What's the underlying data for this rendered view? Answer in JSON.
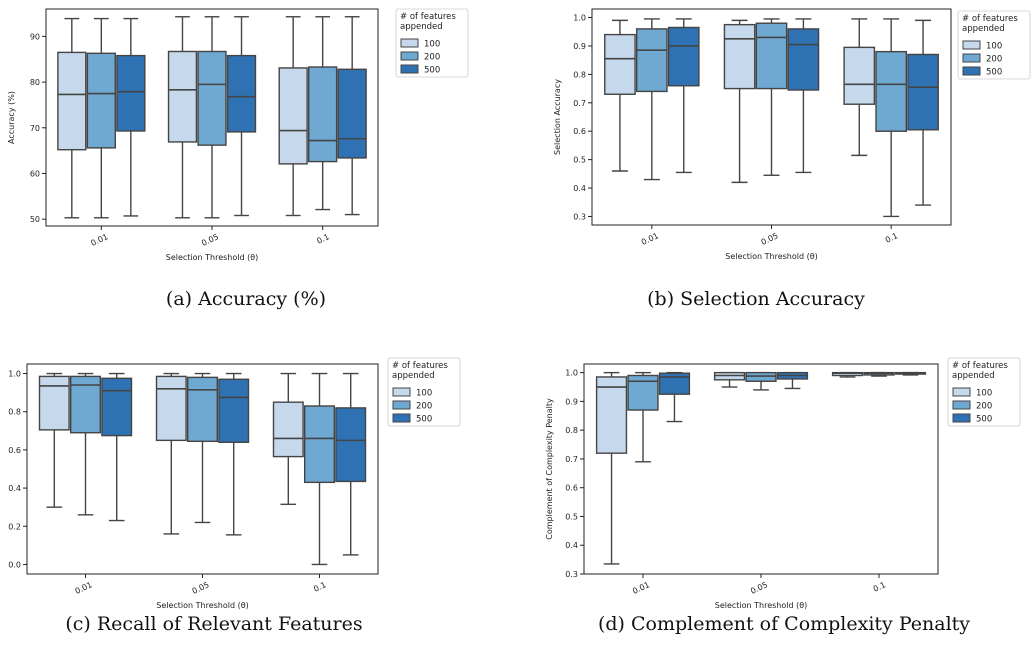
{
  "legend": {
    "title_line1": "# of features",
    "title_line2": "appended",
    "entries": [
      "100",
      "200",
      "500"
    ],
    "colors": [
      "#c6d8eb",
      "#6fa8d1",
      "#2f72b3"
    ]
  },
  "chart_data": [
    {
      "id": "a",
      "type": "box",
      "caption": "(a) Accuracy (%)",
      "xlabel": "Selection Threshold (θ)",
      "ylabel": "Accuracy (%)",
      "categories": [
        "0.01",
        "0.05",
        "0.1"
      ],
      "ylim": [
        48.5,
        96
      ],
      "yticks": [
        50,
        60,
        70,
        80,
        90
      ],
      "ytick_labels": [
        "50",
        "60",
        "70",
        "80",
        "90"
      ],
      "series": [
        {
          "name": "100",
          "boxes": [
            {
              "min": 50.3,
              "q1": 65.2,
              "median": 77.3,
              "q3": 86.5,
              "max": 93.9
            },
            {
              "min": 50.3,
              "q1": 66.9,
              "median": 78.3,
              "q3": 86.7,
              "max": 94.3
            },
            {
              "min": 50.8,
              "q1": 62.1,
              "median": 69.4,
              "q3": 83.1,
              "max": 94.3
            }
          ]
        },
        {
          "name": "200",
          "boxes": [
            {
              "min": 50.3,
              "q1": 65.6,
              "median": 77.5,
              "q3": 86.3,
              "max": 93.9
            },
            {
              "min": 50.3,
              "q1": 66.2,
              "median": 79.5,
              "q3": 86.7,
              "max": 94.3
            },
            {
              "min": 52.1,
              "q1": 62.6,
              "median": 67.2,
              "q3": 83.3,
              "max": 94.3
            }
          ]
        },
        {
          "name": "500",
          "boxes": [
            {
              "min": 50.7,
              "q1": 69.3,
              "median": 77.9,
              "q3": 85.8,
              "max": 93.9
            },
            {
              "min": 50.8,
              "q1": 69.1,
              "median": 76.8,
              "q3": 85.8,
              "max": 94.3
            },
            {
              "min": 51.0,
              "q1": 63.4,
              "median": 67.6,
              "q3": 82.8,
              "max": 94.3
            }
          ]
        }
      ]
    },
    {
      "id": "b",
      "type": "box",
      "caption": "(b) Selection Accuracy",
      "xlabel": "Selection Threshold (θ)",
      "ylabel": "Selection Accuracy",
      "categories": [
        "0.01",
        "0.05",
        "0.1"
      ],
      "ylim": [
        0.27,
        1.03
      ],
      "yticks": [
        0.3,
        0.4,
        0.5,
        0.6,
        0.7,
        0.8,
        0.9,
        1.0
      ],
      "ytick_labels": [
        "0.3",
        "0.4",
        "0.5",
        "0.6",
        "0.7",
        "0.8",
        "0.9",
        "1.0"
      ],
      "series": [
        {
          "name": "100",
          "boxes": [
            {
              "min": 0.46,
              "q1": 0.73,
              "median": 0.855,
              "q3": 0.94,
              "max": 0.99
            },
            {
              "min": 0.42,
              "q1": 0.75,
              "median": 0.925,
              "q3": 0.975,
              "max": 0.99
            },
            {
              "min": 0.515,
              "q1": 0.695,
              "median": 0.765,
              "q3": 0.895,
              "max": 0.995
            }
          ]
        },
        {
          "name": "200",
          "boxes": [
            {
              "min": 0.43,
              "q1": 0.74,
              "median": 0.885,
              "q3": 0.96,
              "max": 0.995
            },
            {
              "min": 0.445,
              "q1": 0.75,
              "median": 0.93,
              "q3": 0.98,
              "max": 0.995
            },
            {
              "min": 0.3,
              "q1": 0.6,
              "median": 0.765,
              "q3": 0.88,
              "max": 0.995
            }
          ]
        },
        {
          "name": "500",
          "boxes": [
            {
              "min": 0.455,
              "q1": 0.76,
              "median": 0.9,
              "q3": 0.965,
              "max": 0.995
            },
            {
              "min": 0.455,
              "q1": 0.745,
              "median": 0.905,
              "q3": 0.96,
              "max": 0.995
            },
            {
              "min": 0.34,
              "q1": 0.605,
              "median": 0.755,
              "q3": 0.87,
              "max": 0.99
            }
          ]
        }
      ]
    },
    {
      "id": "c",
      "type": "box",
      "caption": "(c) Recall of Relevant Features",
      "xlabel": "Selection Threshold (θ)",
      "ylabel": "Recall of Relevant Features",
      "categories": [
        "0.01",
        "0.05",
        "0.1"
      ],
      "ylim": [
        -0.05,
        1.05
      ],
      "yticks": [
        0.0,
        0.2,
        0.4,
        0.6,
        0.8,
        1.0
      ],
      "ytick_labels": [
        "0.0",
        "0.2",
        "0.4",
        "0.6",
        "0.8",
        "1.0"
      ],
      "series": [
        {
          "name": "100",
          "boxes": [
            {
              "min": 0.3,
              "q1": 0.705,
              "median": 0.935,
              "q3": 0.985,
              "max": 1.0
            },
            {
              "min": 0.16,
              "q1": 0.65,
              "median": 0.92,
              "q3": 0.985,
              "max": 1.0
            },
            {
              "min": 0.315,
              "q1": 0.565,
              "median": 0.66,
              "q3": 0.85,
              "max": 1.0
            }
          ]
        },
        {
          "name": "200",
          "boxes": [
            {
              "min": 0.26,
              "q1": 0.69,
              "median": 0.94,
              "q3": 0.985,
              "max": 1.0
            },
            {
              "min": 0.22,
              "q1": 0.645,
              "median": 0.915,
              "q3": 0.98,
              "max": 1.0
            },
            {
              "min": 0.0,
              "q1": 0.43,
              "median": 0.66,
              "q3": 0.83,
              "max": 1.0
            }
          ]
        },
        {
          "name": "500",
          "boxes": [
            {
              "min": 0.23,
              "q1": 0.675,
              "median": 0.91,
              "q3": 0.975,
              "max": 1.0
            },
            {
              "min": 0.155,
              "q1": 0.64,
              "median": 0.875,
              "q3": 0.97,
              "max": 1.0
            },
            {
              "min": 0.05,
              "q1": 0.435,
              "median": 0.65,
              "q3": 0.82,
              "max": 1.0
            }
          ]
        }
      ]
    },
    {
      "id": "d",
      "type": "box",
      "caption": "(d) Complement of Complexity Penalty",
      "xlabel": "Selection Threshold (θ)",
      "ylabel": "Complement of Complexity Penalty",
      "categories": [
        "0.01",
        "0.05",
        "0.1"
      ],
      "ylim": [
        0.3,
        1.03
      ],
      "yticks": [
        0.3,
        0.4,
        0.5,
        0.6,
        0.7,
        0.8,
        0.9,
        1.0
      ],
      "ytick_labels": [
        "0.3",
        "0.4",
        "0.5",
        "0.6",
        "0.7",
        "0.8",
        "0.9",
        "1.0"
      ],
      "series": [
        {
          "name": "100",
          "boxes": [
            {
              "min": 0.335,
              "q1": 0.72,
              "median": 0.95,
              "q3": 0.985,
              "max": 1.0
            },
            {
              "min": 0.95,
              "q1": 0.975,
              "median": 0.99,
              "q3": 1.0,
              "max": 1.0
            },
            {
              "min": 0.985,
              "q1": 0.99,
              "median": 0.998,
              "q3": 1.0,
              "max": 1.0
            }
          ]
        },
        {
          "name": "200",
          "boxes": [
            {
              "min": 0.69,
              "q1": 0.87,
              "median": 0.97,
              "q3": 0.99,
              "max": 1.0
            },
            {
              "min": 0.94,
              "q1": 0.97,
              "median": 0.988,
              "q3": 1.0,
              "max": 1.0
            },
            {
              "min": 0.988,
              "q1": 0.992,
              "median": 0.998,
              "q3": 1.0,
              "max": 1.0
            }
          ]
        },
        {
          "name": "500",
          "boxes": [
            {
              "min": 0.83,
              "q1": 0.925,
              "median": 0.985,
              "q3": 0.998,
              "max": 1.0
            },
            {
              "min": 0.945,
              "q1": 0.978,
              "median": 0.99,
              "q3": 1.0,
              "max": 1.0
            },
            {
              "min": 0.992,
              "q1": 0.995,
              "median": 0.999,
              "q3": 1.0,
              "max": 1.0
            }
          ]
        }
      ]
    }
  ]
}
